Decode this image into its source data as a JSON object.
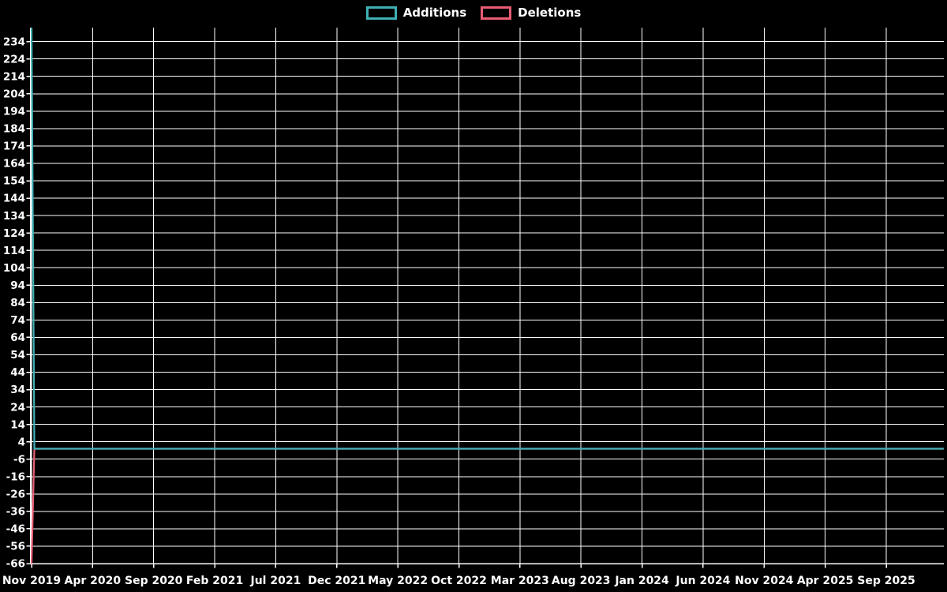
{
  "page": {
    "background": "#000000",
    "text_color": "#FFFFFF"
  },
  "legend": {
    "position": "top-center",
    "items": [
      {
        "label": "Additions",
        "color": "#3FAFB4"
      },
      {
        "label": "Deletions",
        "color": "#E95C72"
      }
    ]
  },
  "chart_data": {
    "type": "line",
    "title": "",
    "xlabel": "",
    "ylabel": "",
    "background": "#000000",
    "grid": true,
    "grid_color": "#FFFFFF",
    "axis_color": "#FFFFFF",
    "text_color": "#FFFFFF",
    "legend_position": "top-center",
    "x_tick_labels": [
      "Nov 2019",
      "Apr 2020",
      "Sep 2020",
      "Feb 2021",
      "Jul 2021",
      "Dec 2021",
      "May 2022",
      "Oct 2022",
      "Mar 2023",
      "Aug 2023",
      "Jan 2024",
      "Jun 2024",
      "Nov 2024",
      "Apr 2025",
      "Sep 2025"
    ],
    "x_tick_interval_months": 5,
    "x_days_per_tick": 152.2,
    "xlim_days": [
      0,
      2274
    ],
    "y_tick_labels": [
      234,
      224,
      214,
      204,
      194,
      184,
      174,
      164,
      154,
      144,
      134,
      124,
      114,
      104,
      94,
      84,
      74,
      64,
      54,
      44,
      34,
      24,
      14,
      4,
      -6,
      -16,
      -26,
      -36,
      -46,
      -56,
      -66
    ],
    "y_tick_step": 10,
    "ylim": [
      -66,
      242
    ],
    "series": [
      {
        "name": "Additions",
        "color": "#3FAFB4",
        "x_days": [
          0,
          7,
          2274
        ],
        "values": [
          242,
          0,
          0
        ]
      },
      {
        "name": "Deletions",
        "color": "#E95C72",
        "x_days": [
          0,
          7,
          2274
        ],
        "values": [
          -66,
          0,
          0
        ]
      }
    ]
  }
}
